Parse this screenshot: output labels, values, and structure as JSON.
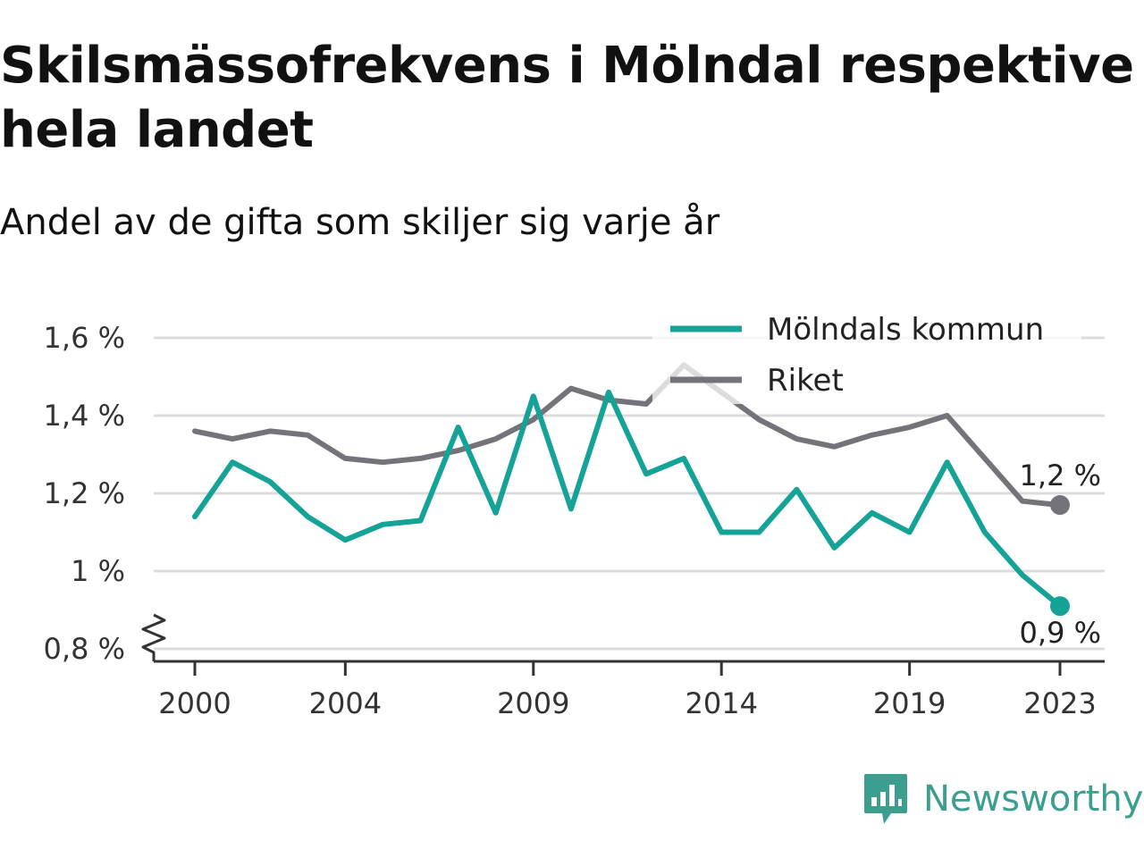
{
  "title": "Skilsmässofrekvens i Mölndal respektive hela landet",
  "subtitle": "Andel av de gifta som skiljer sig varje år",
  "brand": {
    "name": "Newsworthy",
    "icon": "newsworthy-logo-icon",
    "color": "#3c9e8e"
  },
  "chart_data": {
    "type": "line",
    "x": [
      2000,
      2001,
      2002,
      2003,
      2004,
      2005,
      2006,
      2007,
      2008,
      2009,
      2010,
      2011,
      2012,
      2013,
      2014,
      2015,
      2016,
      2017,
      2018,
      2019,
      2020,
      2021,
      2022,
      2023
    ],
    "x_tick_labels": [
      "2000",
      "2004",
      "2009",
      "2014",
      "2019",
      "2023"
    ],
    "x_ticks": [
      2000,
      2004,
      2009,
      2014,
      2019,
      2023
    ],
    "y_ticks": [
      0.8,
      1.0,
      1.2,
      1.4,
      1.6
    ],
    "y_tick_labels": [
      "0,8 %",
      "1 %",
      "1,2 %",
      "1,4 %",
      "1,6 %"
    ],
    "ylim": [
      0.8,
      1.6
    ],
    "y_axis_break": true,
    "grid": "horizontal",
    "legend_position": "top-right",
    "series": [
      {
        "name": "Mölndals kommun",
        "color": "#14a396",
        "values": [
          1.14,
          1.28,
          1.23,
          1.14,
          1.08,
          1.12,
          1.13,
          1.37,
          1.15,
          1.45,
          1.16,
          1.46,
          1.25,
          1.29,
          1.1,
          1.1,
          1.21,
          1.06,
          1.15,
          1.1,
          1.28,
          1.1,
          0.99,
          0.91
        ],
        "end_label": "0,9 %"
      },
      {
        "name": "Riket",
        "color": "#75737a",
        "values": [
          1.36,
          1.34,
          1.36,
          1.35,
          1.29,
          1.28,
          1.29,
          1.31,
          1.34,
          1.39,
          1.47,
          1.44,
          1.43,
          1.53,
          1.46,
          1.39,
          1.34,
          1.32,
          1.35,
          1.37,
          1.4,
          1.29,
          1.18,
          1.17
        ],
        "end_label": "1,2 %"
      }
    ]
  }
}
